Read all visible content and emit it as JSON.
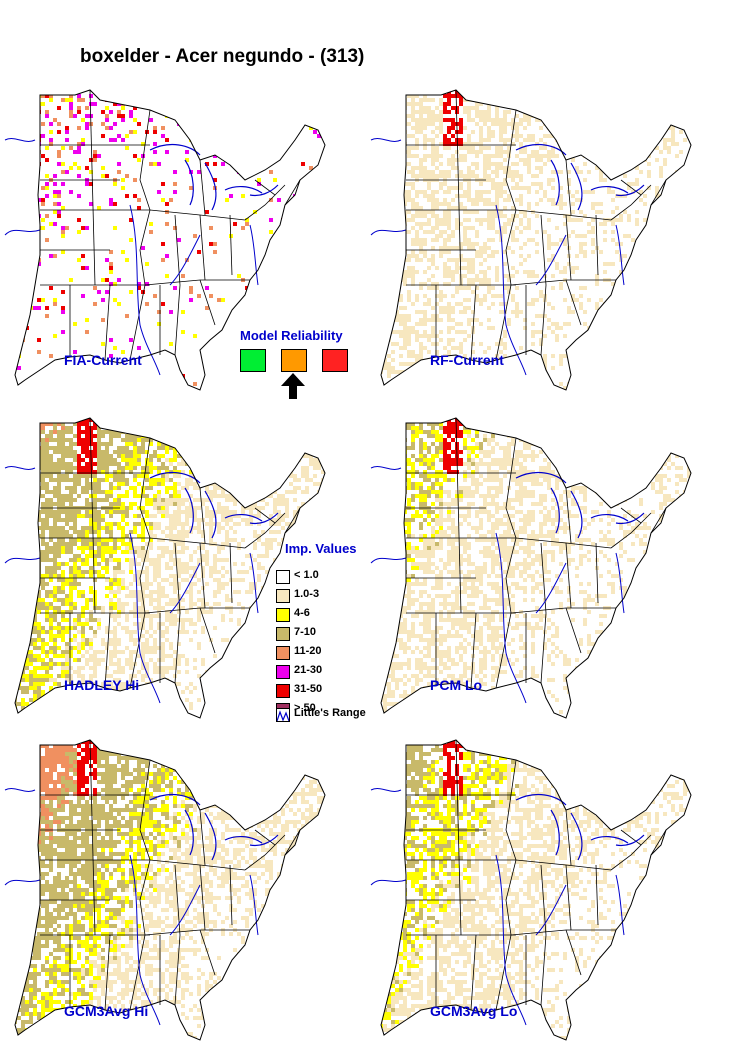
{
  "title": "boxelder - Acer negundo - (313)",
  "panels": [
    {
      "label": "FIA-Current",
      "style": "fia",
      "intensity": 0.35
    },
    {
      "label": "RF-Current",
      "style": "rf",
      "intensity": 0.45
    },
    {
      "label": "HADLEY Hi",
      "style": "model",
      "intensity": 0.85
    },
    {
      "label": "PCM Lo",
      "style": "model",
      "intensity": 0.6
    },
    {
      "label": "GCM3Avg Hi",
      "style": "model",
      "intensity": 0.95
    },
    {
      "label": "GCM3Avg Lo",
      "style": "model",
      "intensity": 0.7
    }
  ],
  "model_reliability": {
    "title": "Model Reliability",
    "options": [
      {
        "name": "high",
        "color": "#00ee33"
      },
      {
        "name": "medium",
        "color": "#ff9900"
      },
      {
        "name": "low",
        "color": "#ff2222"
      }
    ],
    "selected": "medium"
  },
  "legend": {
    "title": "Imp. Values",
    "items": [
      {
        "label": "< 1.0",
        "color": "#ffffff"
      },
      {
        "label": "1.0-3",
        "color": "#f7e7bf"
      },
      {
        "label": "4-6",
        "color": "#ffff00"
      },
      {
        "label": "7-10",
        "color": "#c8b96a"
      },
      {
        "label": "11-20",
        "color": "#f09060"
      },
      {
        "label": "21-30",
        "color": "#ee00ee"
      },
      {
        "label": "31-50",
        "color": "#ee0000"
      },
      {
        "label": "> 50",
        "color": "#a03060"
      }
    ],
    "range_label": "Little's Range"
  },
  "colors": {
    "state_border": "#000000",
    "water": "#0000cc",
    "label_text": "#0000cc"
  }
}
